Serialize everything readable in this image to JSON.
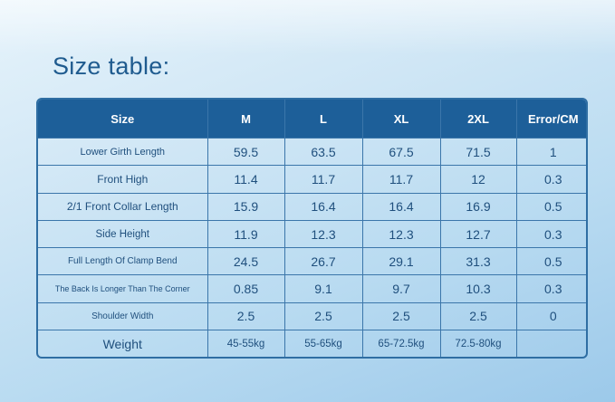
{
  "title": "Size table:",
  "table": {
    "headers": [
      "Size",
      "M",
      "L",
      "XL",
      "2XL",
      "Error/CM"
    ],
    "rows": [
      {
        "label": "Lower Girth Length",
        "cells": [
          "59.5",
          "63.5",
          "67.5",
          "71.5",
          "1"
        ]
      },
      {
        "label": "Front High",
        "cells": [
          "11.4",
          "11.7",
          "11.7",
          "12",
          "0.3"
        ]
      },
      {
        "label": "2/1 Front Collar Length",
        "cells": [
          "15.9",
          "16.4",
          "16.4",
          "16.9",
          "0.5"
        ]
      },
      {
        "label": "Side Height",
        "cells": [
          "11.9",
          "12.3",
          "12.3",
          "12.7",
          "0.3"
        ]
      },
      {
        "label": "Full Length Of Clamp Bend",
        "cells": [
          "24.5",
          "26.7",
          "29.1",
          "31.3",
          "0.5"
        ]
      },
      {
        "label": "The Back Is Longer Than The Corner",
        "cells": [
          "0.85",
          "9.1",
          "9.7",
          "10.3",
          "0.3"
        ]
      },
      {
        "label": "Shoulder Width",
        "cells": [
          "2.5",
          "2.5",
          "2.5",
          "2.5",
          "0"
        ]
      },
      {
        "label": "Weight",
        "cells": [
          "45-55kg",
          "55-65kg",
          "65-72.5kg",
          "72.5-80kg",
          ""
        ]
      }
    ]
  }
}
